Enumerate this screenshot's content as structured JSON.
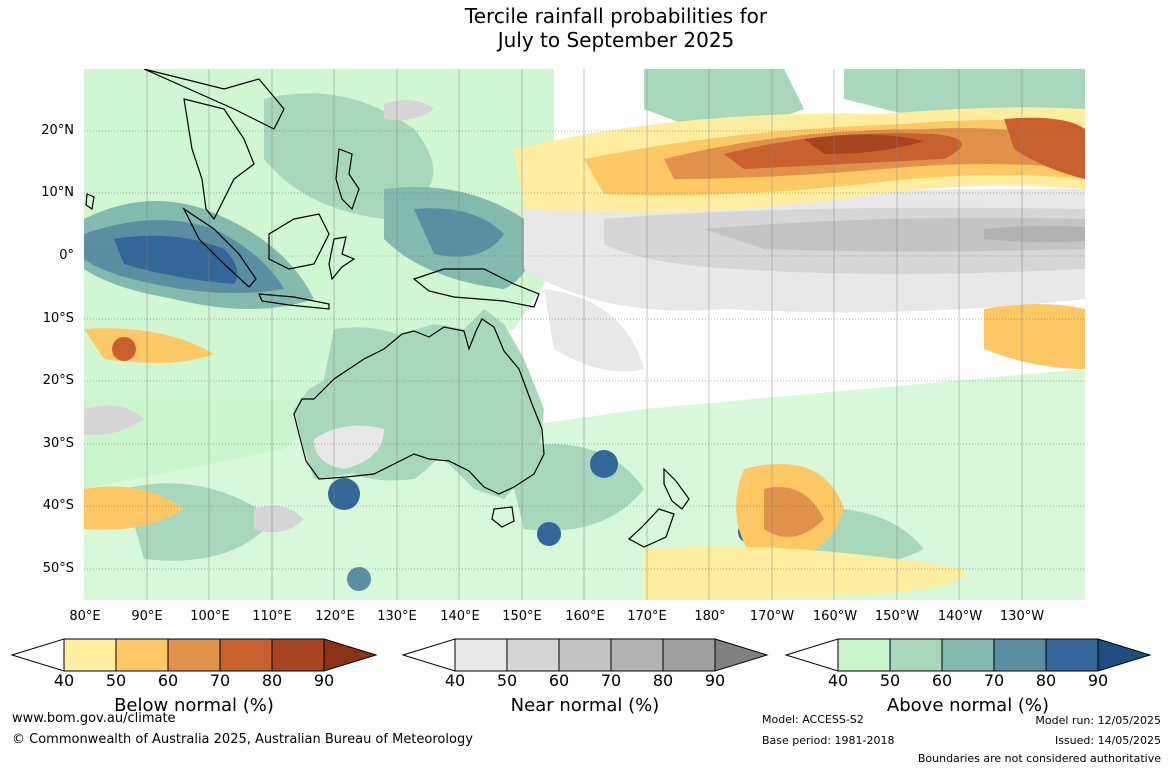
{
  "title": {
    "line1": "Tercile rainfall probabilities for",
    "line2": "July to September 2025"
  },
  "map": {
    "lat_labels": [
      "20°N",
      "10°N",
      "0°",
      "10°S",
      "20°S",
      "30°S",
      "40°S",
      "50°S"
    ],
    "lon_labels": [
      "80°E",
      "90°E",
      "100°E",
      "110°E",
      "120°E",
      "130°E",
      "140°E",
      "150°E",
      "160°E",
      "170°E",
      "180°",
      "170°W",
      "160°W",
      "150°W",
      "140°W",
      "130°W"
    ]
  },
  "legends": [
    {
      "title": "Below normal (%)",
      "ticks": [
        "40",
        "50",
        "60",
        "70",
        "80",
        "90"
      ],
      "colors": [
        "#ffeda0",
        "#fec965",
        "#e0914a",
        "#c8612e",
        "#a84420",
        "#8c3214"
      ]
    },
    {
      "title": "Near normal (%)",
      "ticks": [
        "40",
        "50",
        "60",
        "70",
        "80",
        "90"
      ],
      "colors": [
        "#e8e8e8",
        "#d6d6d6",
        "#c4c4c4",
        "#b2b2b2",
        "#a0a0a0",
        "#808080"
      ]
    },
    {
      "title": "Above normal (%)",
      "ticks": [
        "40",
        "50",
        "60",
        "70",
        "80",
        "90"
      ],
      "colors": [
        "#c8f5ca",
        "#a8d8bc",
        "#84b9ae",
        "#5a8ea0",
        "#336699",
        "#1e4e80"
      ]
    }
  ],
  "footer": {
    "url": "www.bom.gov.au/climate",
    "copyright": "© Commonwealth of Australia 2025, Australian Bureau of Meteorology",
    "model": "Model: ACCESS-S2",
    "base_period": "Base period: 1981-2018",
    "model_run": "Model run: 12/05/2025",
    "issued": "Issued: 14/05/2025",
    "disclaimer": "Boundaries are not considered authoritative"
  }
}
